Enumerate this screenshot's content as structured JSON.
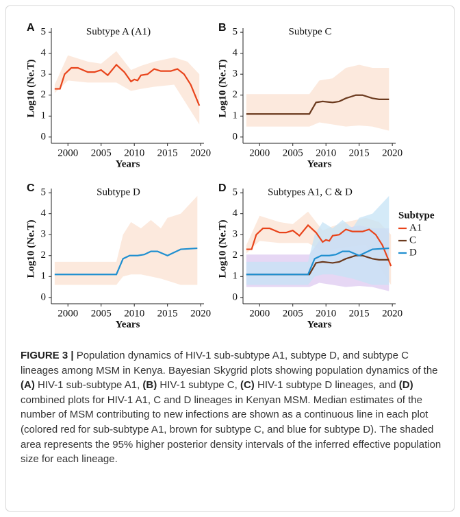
{
  "chart_data": [
    {
      "type": "line",
      "panel": "A",
      "title": "Subtype A (A1)",
      "xlabel": "Years",
      "ylabel": "Log10 (Ne.T)",
      "xlim": [
        1997.5,
        2020.5
      ],
      "ylim": [
        -0.3,
        5.2
      ],
      "xticks": [
        2000,
        2005,
        2010,
        2015,
        2020
      ],
      "yticks": [
        0,
        1,
        2,
        3,
        4,
        5
      ],
      "series": [
        {
          "color": "#e8431a",
          "band_color": "#fbe1d1",
          "x": [
            1998,
            1998.8,
            1999.5,
            2000.5,
            2001.5,
            2003,
            2004,
            2005,
            2006,
            2007.3,
            2008.5,
            2009.5,
            2010,
            2010.5,
            2011,
            2012,
            2013,
            2014,
            2015.5,
            2016.5,
            2017.5,
            2018.5,
            2019.8
          ],
          "values": [
            2.3,
            2.3,
            3.0,
            3.3,
            3.3,
            3.1,
            3.1,
            3.2,
            2.95,
            3.45,
            3.1,
            2.65,
            2.75,
            2.7,
            2.95,
            3.0,
            3.25,
            3.15,
            3.15,
            3.25,
            3.0,
            2.5,
            1.5
          ],
          "interval": {
            "x": [
              1998,
              2000,
              2003,
              2005,
              2007.3,
              2009.5,
              2011,
              2013,
              2016,
              2018,
              2019.8
            ],
            "upper": [
              2.5,
              3.9,
              3.6,
              3.5,
              4.1,
              3.2,
              3.4,
              3.6,
              3.8,
              3.6,
              3.0
            ],
            "lower": [
              2.1,
              2.7,
              2.6,
              2.6,
              2.6,
              2.2,
              2.3,
              2.4,
              2.5,
              1.5,
              0.6
            ]
          }
        }
      ]
    },
    {
      "type": "line",
      "panel": "B",
      "title": "Subtype C",
      "xlabel": "Years",
      "ylabel": "Log10 (Ne.T)",
      "xlim": [
        1997.5,
        2020.5
      ],
      "ylim": [
        -0.3,
        5.2
      ],
      "xticks": [
        2000,
        2005,
        2010,
        2015,
        2020
      ],
      "yticks": [
        0,
        1,
        2,
        3,
        4,
        5
      ],
      "series": [
        {
          "color": "#6b3a1e",
          "band_color": "#fbe1d1",
          "x": [
            1998,
            2007.5,
            2008.5,
            2009.5,
            2011,
            2012,
            2013,
            2014.5,
            2015.5,
            2017,
            2018,
            2019.5
          ],
          "values": [
            1.1,
            1.1,
            1.65,
            1.7,
            1.65,
            1.7,
            1.85,
            2.0,
            2.0,
            1.85,
            1.8,
            1.8
          ],
          "interval": {
            "x": [
              1998,
              2007.5,
              2009,
              2011,
              2013,
              2015,
              2017,
              2019.5
            ],
            "upper": [
              2.05,
              2.05,
              2.7,
              2.8,
              3.3,
              3.45,
              3.3,
              3.3
            ],
            "lower": [
              0.5,
              0.5,
              0.7,
              0.6,
              0.5,
              0.55,
              0.5,
              0.3
            ]
          }
        }
      ]
    },
    {
      "type": "line",
      "panel": "C",
      "title": "Subtype D",
      "xlabel": "Years",
      "ylabel": "Log10 (Ne.T)",
      "xlim": [
        1997.5,
        2020.5
      ],
      "ylim": [
        -0.3,
        5.2
      ],
      "xticks": [
        2000,
        2005,
        2010,
        2015,
        2020
      ],
      "yticks": [
        0,
        1,
        2,
        3,
        4,
        5
      ],
      "series": [
        {
          "color": "#1f8fd0",
          "band_color": "#fbe1d1",
          "x": [
            1998,
            2007.3,
            2008.3,
            2009.3,
            2010.5,
            2011.5,
            2012.5,
            2013.5,
            2015,
            2016,
            2017,
            2019.5
          ],
          "values": [
            1.1,
            1.1,
            1.85,
            2.0,
            2.0,
            2.05,
            2.2,
            2.2,
            2.0,
            2.15,
            2.3,
            2.35
          ],
          "interval": {
            "x": [
              1998,
              2007.3,
              2008.3,
              2009.5,
              2011,
              2012.5,
              2014,
              2015,
              2017,
              2019.5
            ],
            "upper": [
              1.7,
              1.7,
              3.0,
              3.6,
              3.3,
              3.7,
              3.3,
              3.8,
              4.0,
              4.85
            ],
            "lower": [
              0.6,
              0.6,
              1.0,
              1.1,
              1.1,
              1.0,
              0.9,
              0.8,
              0.6,
              0.6
            ]
          }
        }
      ]
    },
    {
      "type": "line",
      "panel": "D",
      "title": "Subtypes A1, C & D",
      "xlabel": "Years",
      "ylabel": "Log10 (Ne.T)",
      "xlim": [
        1997.5,
        2020.5
      ],
      "ylim": [
        -0.3,
        5.2
      ],
      "xticks": [
        2000,
        2005,
        2010,
        2015,
        2020
      ],
      "yticks": [
        0,
        1,
        2,
        3,
        4,
        5
      ],
      "legend_title": "Subtype",
      "series": [
        {
          "name": "A1",
          "color": "#e8431a",
          "band_color": "#fbe1d1",
          "x": [
            1998,
            1998.8,
            1999.5,
            2000.5,
            2001.5,
            2003,
            2004,
            2005,
            2006,
            2007.3,
            2008.5,
            2009.5,
            2010,
            2010.5,
            2011,
            2012,
            2013,
            2014,
            2015.5,
            2016.5,
            2017.5,
            2018.5,
            2019.8
          ],
          "values": [
            2.3,
            2.3,
            3.0,
            3.3,
            3.3,
            3.1,
            3.1,
            3.2,
            2.95,
            3.45,
            3.1,
            2.65,
            2.75,
            2.7,
            2.95,
            3.0,
            3.25,
            3.15,
            3.15,
            3.25,
            3.0,
            2.5,
            1.5
          ],
          "interval": {
            "x": [
              1998,
              2000,
              2003,
              2005,
              2007.3,
              2009.5,
              2011,
              2013,
              2016,
              2018,
              2019.8
            ],
            "upper": [
              2.5,
              3.9,
              3.6,
              3.5,
              4.1,
              3.2,
              3.4,
              3.6,
              3.8,
              3.6,
              3.0
            ],
            "lower": [
              2.1,
              2.7,
              2.6,
              2.6,
              2.6,
              2.2,
              2.3,
              2.4,
              2.5,
              1.5,
              0.6
            ]
          }
        },
        {
          "name": "C",
          "color": "#6b3a1e",
          "band_color": "#ddc9f0",
          "x": [
            1998,
            2007.5,
            2008.5,
            2009.5,
            2011,
            2012,
            2013,
            2014.5,
            2015.5,
            2017,
            2018,
            2019.5
          ],
          "values": [
            1.1,
            1.1,
            1.65,
            1.7,
            1.65,
            1.7,
            1.85,
            2.0,
            2.0,
            1.85,
            1.8,
            1.8
          ],
          "interval": {
            "x": [
              1998,
              2007.5,
              2009,
              2011,
              2013,
              2015,
              2017,
              2019.5
            ],
            "upper": [
              2.05,
              2.05,
              2.7,
              2.8,
              3.3,
              3.45,
              3.3,
              3.3
            ],
            "lower": [
              0.5,
              0.5,
              0.7,
              0.6,
              0.5,
              0.55,
              0.5,
              0.3
            ]
          }
        },
        {
          "name": "D",
          "color": "#1f8fd0",
          "band_color": "#c6e3f6",
          "x": [
            1998,
            2007.3,
            2008.3,
            2009.3,
            2010.5,
            2011.5,
            2012.5,
            2013.5,
            2015,
            2016,
            2017,
            2019.5
          ],
          "values": [
            1.1,
            1.1,
            1.85,
            2.0,
            2.0,
            2.05,
            2.2,
            2.2,
            2.0,
            2.15,
            2.3,
            2.35
          ],
          "interval": {
            "x": [
              1998,
              2007.3,
              2008.3,
              2009.5,
              2011,
              2012.5,
              2014,
              2015,
              2017,
              2019.5
            ],
            "upper": [
              1.7,
              1.7,
              3.0,
              3.6,
              3.3,
              3.7,
              3.3,
              3.8,
              4.0,
              4.85
            ],
            "lower": [
              0.6,
              0.6,
              1.0,
              1.1,
              1.1,
              1.0,
              0.9,
              0.8,
              0.6,
              0.6
            ]
          }
        }
      ]
    }
  ],
  "caption": [
    {
      "text": "FIGURE 3 |",
      "bold": true
    },
    {
      "text": " Population dynamics of HIV-1 sub-subtype A1, subtype D, and subtype C lineages among MSM in Kenya. Bayesian Skygrid plots showing population dynamics of the "
    },
    {
      "text": "(A)",
      "bold": true
    },
    {
      "text": " HIV-1 sub-subtype A1, "
    },
    {
      "text": "(B)",
      "bold": true
    },
    {
      "text": " HIV-1 subtype C, "
    },
    {
      "text": "(C)",
      "bold": true
    },
    {
      "text": " HIV-1 subtype D lineages, and "
    },
    {
      "text": "(D)",
      "bold": true
    },
    {
      "text": " combined plots for HIV-1 A1, C and D lineages in Kenyan MSM. Median estimates of the number of MSM contributing to new infections are shown as a continuous line in each plot (colored red for sub-subtype A1, brown for subtype C, and blue for subtype D). The shaded area represents the 95% higher posterior density intervals of the inferred effective population size for each lineage."
    }
  ]
}
